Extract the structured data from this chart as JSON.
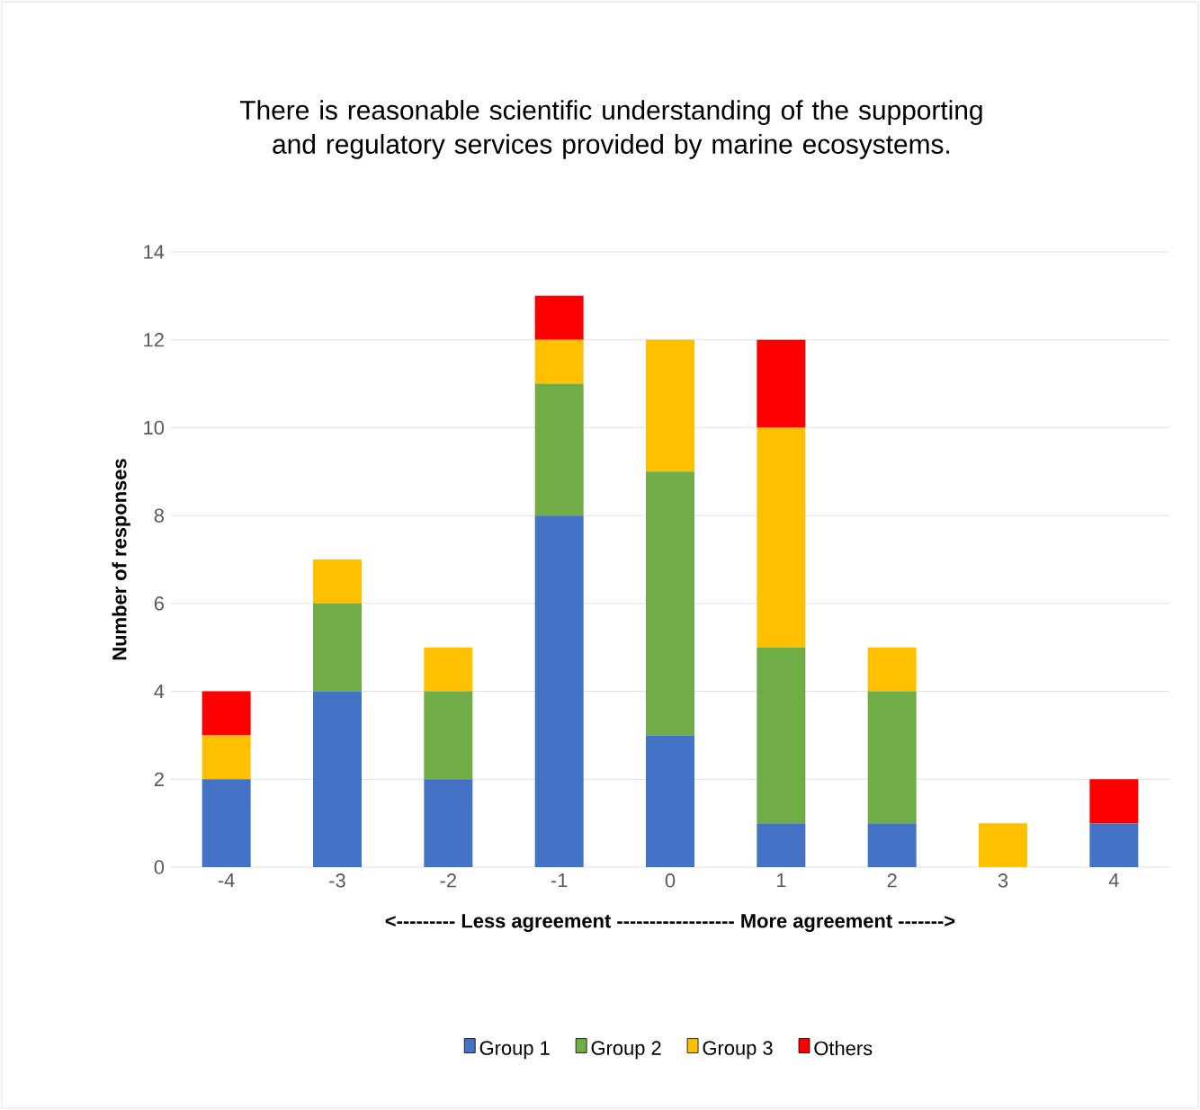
{
  "chart_data": {
    "type": "bar",
    "stacked": true,
    "title": "There is reasonable scientific understanding of the supporting and regulatory services provided by marine ecosystems.",
    "xlabel": "<--------- Less agreement ------------------ More agreement ------->",
    "ylabel": "Number of responses",
    "categories": [
      "-4",
      "-3",
      "-2",
      "-1",
      "0",
      "1",
      "2",
      "3",
      "4"
    ],
    "series": [
      {
        "name": "Group 1",
        "color": "#4472c4",
        "values": [
          2,
          4,
          2,
          8,
          3,
          1,
          1,
          0,
          1
        ]
      },
      {
        "name": "Group 2",
        "color": "#70ad47",
        "values": [
          0,
          2,
          2,
          3,
          6,
          4,
          3,
          0,
          0
        ]
      },
      {
        "name": "Group 3",
        "color": "#ffc000",
        "values": [
          1,
          1,
          1,
          1,
          3,
          5,
          1,
          1,
          0
        ]
      },
      {
        "name": "Others",
        "color": "#ff0000",
        "values": [
          1,
          0,
          0,
          1,
          0,
          2,
          0,
          0,
          1
        ]
      }
    ],
    "ylim": [
      0,
      14
    ],
    "yticks": [
      0,
      2,
      4,
      6,
      8,
      10,
      12,
      14
    ],
    "grid": "y",
    "legend": "bottom"
  }
}
